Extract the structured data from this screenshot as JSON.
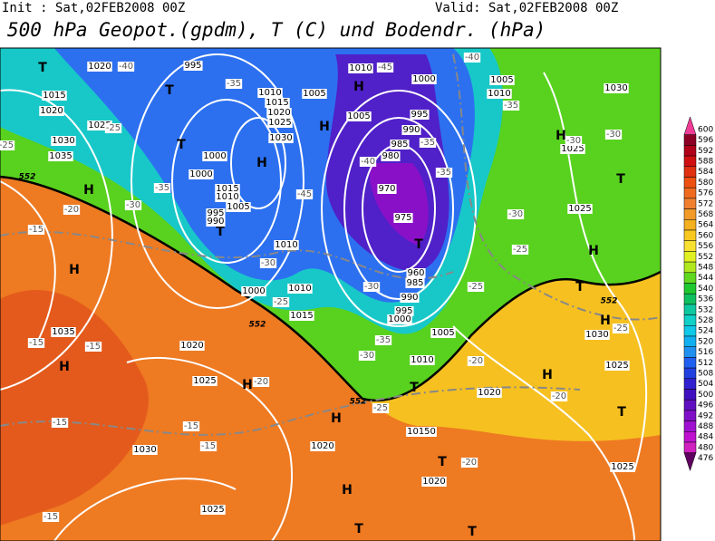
{
  "header": {
    "init": "Init : Sat,02FEB2008 00Z",
    "valid": "Valid: Sat,02FEB2008 00Z",
    "title": "500 hPa Geopot.(gpdm), T (C) und Bodendr. (hPa)"
  },
  "colorbar": {
    "labels": [
      600,
      596,
      592,
      588,
      584,
      580,
      576,
      572,
      568,
      564,
      560,
      556,
      552,
      548,
      544,
      540,
      536,
      532,
      528,
      524,
      520,
      516,
      512,
      508,
      504,
      500,
      496,
      492,
      488,
      484,
      480,
      476
    ],
    "colors": [
      "#f03c96",
      "#8b0024",
      "#b0001a",
      "#d01010",
      "#e03010",
      "#ee5010",
      "#f06a1e",
      "#f08030",
      "#f29a28",
      "#f5b020",
      "#f8c820",
      "#f8e030",
      "#e0f020",
      "#b0e820",
      "#60d820",
      "#20c830",
      "#10c060",
      "#10c8a0",
      "#10d0c8",
      "#10c8e8",
      "#10b0f0",
      "#2090f0",
      "#2060f0",
      "#2040e0",
      "#3020d0",
      "#4010c0",
      "#6010c0",
      "#8010c8",
      "#a010d0",
      "#c010d0",
      "#d020c0",
      "#600060"
    ]
  },
  "map": {
    "highs_lows": [
      "T",
      "T",
      "H",
      "H",
      "T",
      "H",
      "H",
      "T",
      "T",
      "H",
      "T",
      "H",
      "T",
      "H",
      "H",
      "H",
      "H",
      "T",
      "T",
      "H",
      "H",
      "H",
      "T",
      "T",
      "T"
    ],
    "isobar_labels": [
      1020,
      1015,
      1020,
      1025,
      1030,
      1035,
      995,
      1010,
      1015,
      1020,
      1025,
      1030,
      1000,
      1000,
      1015,
      1010,
      1005,
      995,
      990,
      1010,
      1000,
      1010,
      1015,
      1035,
      1020,
      1025,
      1030,
      1025,
      1010,
      1005,
      1000,
      1005,
      995,
      990,
      985,
      980,
      970,
      975,
      960,
      985,
      990,
      995,
      1000,
      1005,
      1010,
      1005,
      1010,
      1030,
      1025,
      1025,
      1030,
      1025,
      1020,
      10150,
      1020,
      1020,
      1025
    ],
    "temperature_labels": [
      -40,
      -45,
      -40,
      -35,
      -35,
      -30,
      -30,
      -25,
      -25,
      -35,
      -15,
      -20,
      -30,
      -45,
      -40,
      -35,
      -30,
      -25,
      -35,
      -30,
      -25,
      -35,
      -30,
      -25,
      -20,
      -20,
      -25,
      -15,
      -15,
      -20,
      -15,
      -15,
      -15,
      -20,
      -15,
      -30,
      -25
    ],
    "contour_labels": [
      552,
      552,
      552,
      552
    ]
  }
}
